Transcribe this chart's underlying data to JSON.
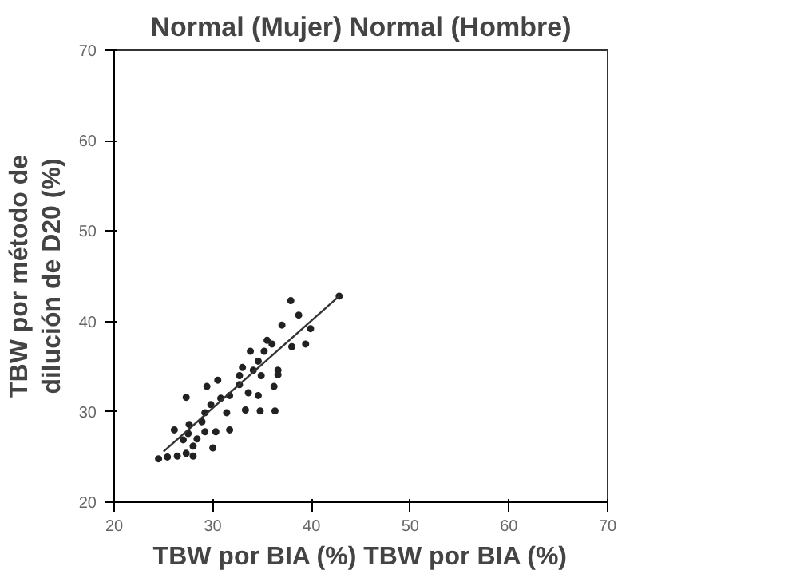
{
  "chart_data": {
    "type": "scatter",
    "title": "Normal (Mujer) Normal (Hombre)",
    "xlabel": "TBW por BIA (%) TBW por BIA (%)",
    "ylabel": "TBW por método de dilución de D20 (%)",
    "xlim": [
      20,
      70
    ],
    "ylim": [
      20,
      70
    ],
    "xticks": [
      20,
      30,
      40,
      50,
      60,
      70
    ],
    "yticks": [
      20,
      30,
      40,
      50,
      60,
      70
    ],
    "grid": false,
    "series": [
      {
        "marker": "circle",
        "color": "#222222",
        "x": [
          42.8,
          37.9,
          38.7,
          37.0,
          39.9,
          39.4,
          38.0,
          35.5,
          36.0,
          33.8,
          35.2,
          34.6,
          33.0,
          34.1,
          36.6,
          36.6,
          32.7,
          34.9,
          36.2,
          32.7,
          30.5,
          29.4,
          33.6,
          34.6,
          31.7,
          30.8,
          27.3,
          31.4,
          33.3,
          34.8,
          36.3,
          29.2,
          29.8,
          28.9,
          27.6,
          31.7,
          30.3,
          29.2,
          26.1,
          27.5,
          27.0,
          28.4,
          30.0,
          28.0,
          24.5,
          25.4,
          26.4,
          27.3,
          28.0
        ],
        "values": [
          42.8,
          42.3,
          40.7,
          39.6,
          39.2,
          37.5,
          37.2,
          37.9,
          37.5,
          36.7,
          36.7,
          35.6,
          34.9,
          34.6,
          34.6,
          34.1,
          34.0,
          34.0,
          32.8,
          33.0,
          33.5,
          32.8,
          32.1,
          31.8,
          31.8,
          31.5,
          31.6,
          29.9,
          30.2,
          30.1,
          30.1,
          29.9,
          30.8,
          28.9,
          28.6,
          28.0,
          27.8,
          27.8,
          28.0,
          27.6,
          26.9,
          27.0,
          26.0,
          26.2,
          24.8,
          25.0,
          25.1,
          25.4,
          25.1
        ]
      },
      {
        "type": "line",
        "marker": "none",
        "color": "#333333",
        "x": [
          25.0,
          42.8
        ],
        "values": [
          25.6,
          42.8
        ]
      }
    ]
  }
}
